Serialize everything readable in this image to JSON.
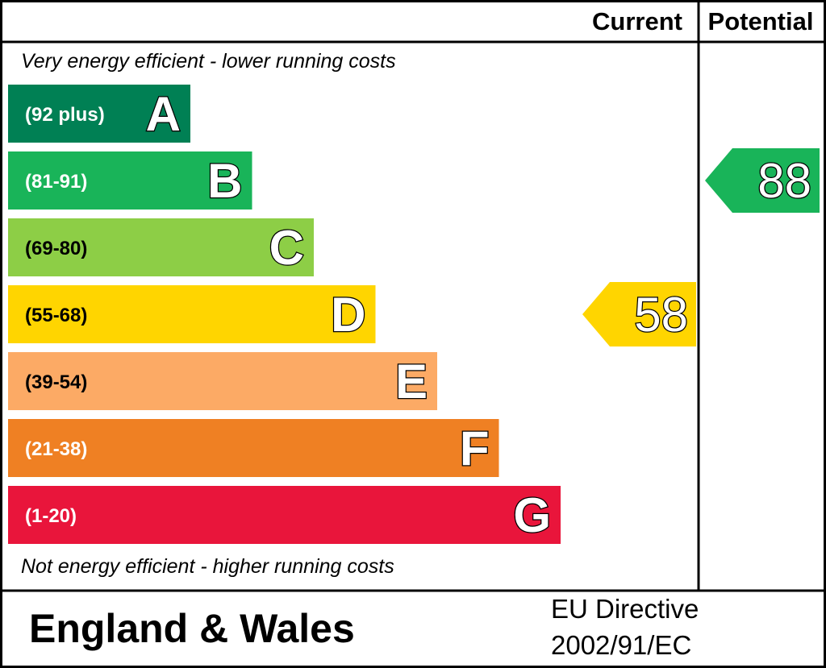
{
  "header": {
    "current_label": "Current",
    "potential_label": "Potential"
  },
  "notes": {
    "top": "Very energy efficient - lower running costs",
    "bottom": "Not energy efficient - higher running costs"
  },
  "footer": {
    "region": "England & Wales",
    "directive_line1": "EU Directive",
    "directive_line2": "2002/91/EC"
  },
  "chart_data": {
    "type": "bar",
    "categories": [
      "A",
      "B",
      "C",
      "D",
      "E",
      "F",
      "G"
    ],
    "ranges": [
      "(92 plus)",
      "(81-91)",
      "(69-80)",
      "(55-68)",
      "(39-54)",
      "(21-38)",
      "(1-20)"
    ],
    "bands": [
      {
        "letter": "A",
        "range": "(92 plus)",
        "min": 92,
        "max": 100,
        "color": "#008054"
      },
      {
        "letter": "B",
        "range": "(81-91)",
        "min": 81,
        "max": 91,
        "color": "#19b459"
      },
      {
        "letter": "C",
        "range": "(69-80)",
        "min": 69,
        "max": 80,
        "color": "#8dce46"
      },
      {
        "letter": "D",
        "range": "(55-68)",
        "min": 55,
        "max": 68,
        "color": "#ffd500"
      },
      {
        "letter": "E",
        "range": "(39-54)",
        "min": 39,
        "max": 54,
        "color": "#fcaa65"
      },
      {
        "letter": "F",
        "range": "(21-38)",
        "min": 21,
        "max": 38,
        "color": "#ef8023"
      },
      {
        "letter": "G",
        "range": "(1-20)",
        "min": 1,
        "max": 20,
        "color": "#e9153b"
      }
    ],
    "current": {
      "value": 58,
      "band": "D",
      "color": "#ffd500"
    },
    "potential": {
      "value": 88,
      "band": "B",
      "color": "#19b459"
    }
  }
}
